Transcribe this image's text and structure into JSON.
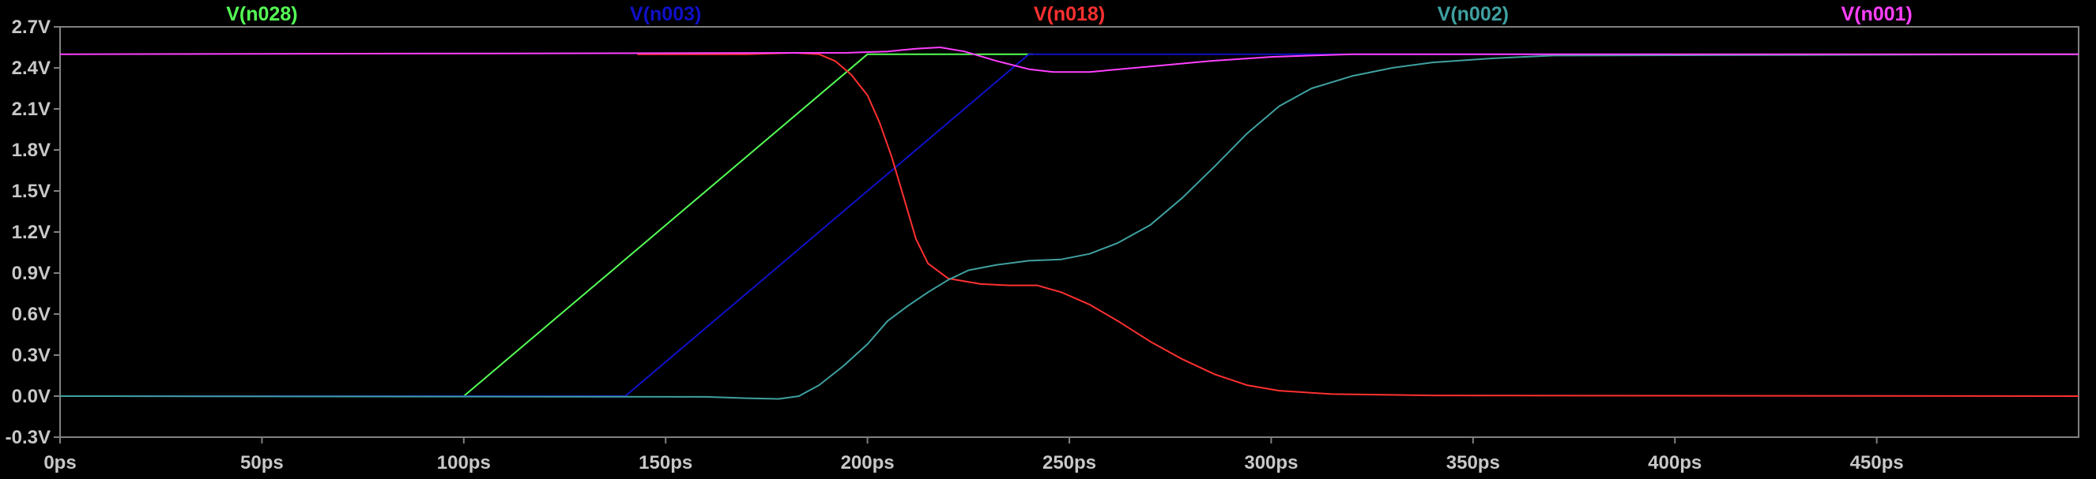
{
  "chart_data": {
    "type": "line",
    "title": "",
    "xlabel": "",
    "ylabel": "",
    "xlim": [
      0,
      500
    ],
    "ylim": [
      -0.3,
      2.7
    ],
    "x_unit": "ps",
    "y_unit": "V",
    "x_ticks": [
      0,
      50,
      100,
      150,
      200,
      250,
      300,
      350,
      400,
      450
    ],
    "x_tick_labels": [
      "0ps",
      "50ps",
      "100ps",
      "150ps",
      "200ps",
      "250ps",
      "300ps",
      "350ps",
      "400ps",
      "450ps"
    ],
    "y_ticks": [
      2.7,
      2.4,
      2.1,
      1.8,
      1.5,
      1.2,
      0.9,
      0.6,
      0.3,
      0.0,
      -0.3
    ],
    "y_tick_labels": [
      "2.7V",
      "2.4V",
      "2.1V",
      "1.8V",
      "1.5V",
      "1.2V",
      "0.9V",
      "0.6V",
      "0.3V",
      "0.0V",
      "-0.3V"
    ],
    "grid": false,
    "background": "#000000",
    "axis_color": "#808080",
    "legend_placement": "top",
    "series": [
      {
        "name": "V(n028)",
        "color": "#55ff55",
        "points": [
          [
            0,
            0
          ],
          [
            100,
            0
          ],
          [
            200,
            2.5
          ],
          [
            241,
            2.5
          ]
        ]
      },
      {
        "name": "V(n003)",
        "color": "#1010c8",
        "points": [
          [
            0,
            0
          ],
          [
            140,
            0
          ],
          [
            150,
            0.25
          ],
          [
            160,
            0.5
          ],
          [
            170,
            0.75
          ],
          [
            180,
            1.0
          ],
          [
            190,
            1.25
          ],
          [
            200,
            1.5
          ],
          [
            210,
            1.75
          ],
          [
            220,
            2.0
          ],
          [
            230,
            2.25
          ],
          [
            240,
            2.5
          ],
          [
            260,
            2.5
          ],
          [
            350,
            2.5
          ],
          [
            399,
            2.5
          ]
        ]
      },
      {
        "name": "V(n018)",
        "color": "#ff3030",
        "points": [
          [
            143,
            2.5
          ],
          [
            170,
            2.5
          ],
          [
            182,
            2.51
          ],
          [
            188,
            2.5
          ],
          [
            192,
            2.45
          ],
          [
            196,
            2.35
          ],
          [
            200,
            2.2
          ],
          [
            203,
            2.0
          ],
          [
            206,
            1.75
          ],
          [
            209,
            1.45
          ],
          [
            212,
            1.15
          ],
          [
            215,
            0.97
          ],
          [
            220,
            0.86
          ],
          [
            228,
            0.82
          ],
          [
            235,
            0.81
          ],
          [
            242,
            0.81
          ],
          [
            248,
            0.76
          ],
          [
            255,
            0.67
          ],
          [
            262,
            0.55
          ],
          [
            270,
            0.4
          ],
          [
            278,
            0.27
          ],
          [
            286,
            0.16
          ],
          [
            294,
            0.08
          ],
          [
            302,
            0.04
          ],
          [
            315,
            0.015
          ],
          [
            340,
            0.005
          ],
          [
            500,
            0
          ]
        ]
      },
      {
        "name": "V(n002)",
        "color": "#40a0a0",
        "points": [
          [
            0,
            0
          ],
          [
            160,
            -0.005
          ],
          [
            170,
            -0.015
          ],
          [
            178,
            -0.02
          ],
          [
            183,
            0.0
          ],
          [
            188,
            0.08
          ],
          [
            194,
            0.22
          ],
          [
            200,
            0.38
          ],
          [
            205,
            0.55
          ],
          [
            210,
            0.66
          ],
          [
            215,
            0.76
          ],
          [
            220,
            0.85
          ],
          [
            225,
            0.92
          ],
          [
            232,
            0.96
          ],
          [
            240,
            0.99
          ],
          [
            248,
            1.0
          ],
          [
            255,
            1.04
          ],
          [
            262,
            1.12
          ],
          [
            270,
            1.25
          ],
          [
            278,
            1.45
          ],
          [
            286,
            1.68
          ],
          [
            294,
            1.92
          ],
          [
            302,
            2.12
          ],
          [
            310,
            2.25
          ],
          [
            320,
            2.34
          ],
          [
            330,
            2.4
          ],
          [
            340,
            2.44
          ],
          [
            355,
            2.47
          ],
          [
            370,
            2.49
          ],
          [
            500,
            2.5
          ]
        ]
      },
      {
        "name": "V(n001)",
        "color": "#ff40ff",
        "points": [
          [
            0,
            2.5
          ],
          [
            195,
            2.51
          ],
          [
            205,
            2.52
          ],
          [
            212,
            2.54
          ],
          [
            218,
            2.55
          ],
          [
            224,
            2.52
          ],
          [
            232,
            2.45
          ],
          [
            240,
            2.39
          ],
          [
            246,
            2.37
          ],
          [
            255,
            2.37
          ],
          [
            270,
            2.41
          ],
          [
            285,
            2.45
          ],
          [
            300,
            2.48
          ],
          [
            320,
            2.5
          ],
          [
            500,
            2.5
          ]
        ]
      }
    ]
  }
}
